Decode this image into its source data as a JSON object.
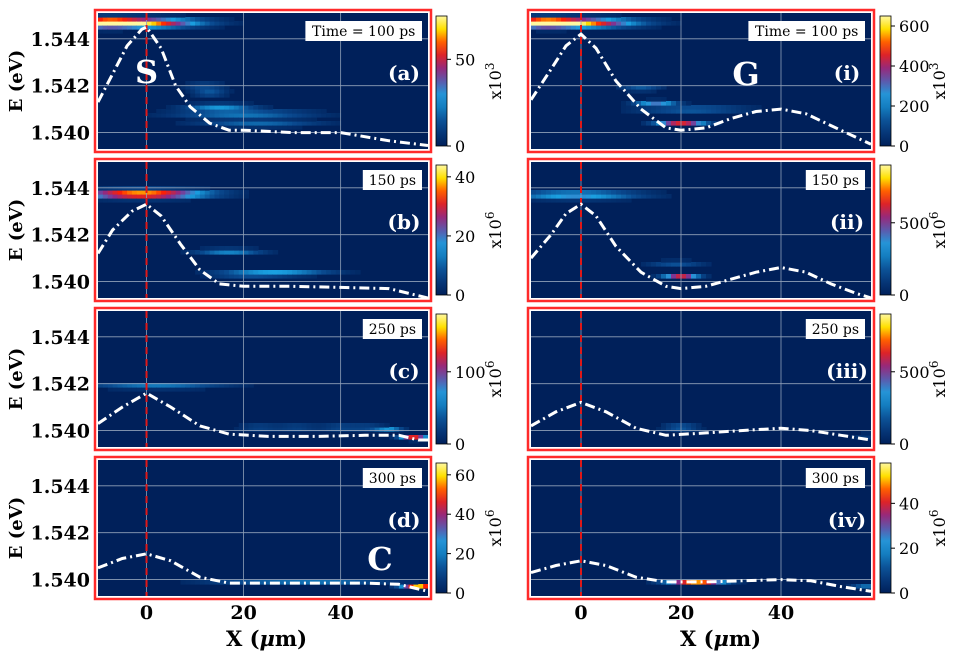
{
  "colors": {
    "background": "#00205a",
    "frame": "#ff2a2a",
    "grid": "#8fa0b8",
    "ridge": "#ffffff",
    "marker": "#e01818",
    "colormap": [
      "#00205a",
      "#0a4a90",
      "#1aa0e0",
      "#8a2a8a",
      "#ff2000",
      "#ffe000",
      "#fff8a0"
    ]
  },
  "chart_data": [
    {
      "type": "heatmap",
      "panel": "(a)",
      "timeLabel": "Time = 100 ps",
      "bigLetter": "S",
      "xlim": [
        -10,
        58
      ],
      "ylim": [
        1.5393,
        1.5451
      ],
      "xticks": [
        0,
        20,
        40
      ],
      "yticks": [
        1.54,
        1.542,
        1.544
      ],
      "ytickLabels": [
        "1.540",
        "1.542",
        "1.544"
      ],
      "colorbar": {
        "ticks": [
          0,
          50
        ],
        "max": 75,
        "exponent": "x10",
        "power": "3"
      },
      "ridge": [
        [
          -10,
          1.5413
        ],
        [
          -7,
          1.5425
        ],
        [
          -4,
          1.5437
        ],
        [
          -1,
          1.5444
        ],
        [
          0,
          1.5445
        ],
        [
          3,
          1.5436
        ],
        [
          6,
          1.542
        ],
        [
          9,
          1.5411
        ],
        [
          13,
          1.5404
        ],
        [
          17,
          1.5401
        ],
        [
          20,
          1.5401
        ],
        [
          30,
          1.54
        ],
        [
          40,
          1.54
        ],
        [
          50,
          1.53965
        ],
        [
          58,
          1.53945
        ]
      ],
      "blobs": [
        [
          -3,
          1.5447,
          9,
          0.00014,
          1.0
        ],
        [
          -9,
          1.5447,
          4,
          0.00014,
          0.5
        ],
        [
          15,
          1.5411,
          5,
          0.0001,
          0.35
        ],
        [
          13,
          1.5417,
          2.5,
          8e-05,
          0.3
        ],
        [
          20,
          1.5408,
          10,
          0.00012,
          0.3
        ],
        [
          23,
          1.5404,
          9,
          0.0001,
          0.25
        ],
        [
          12,
          1.542,
          3,
          0.0001,
          0.2
        ]
      ]
    },
    {
      "type": "heatmap",
      "panel": "(b)",
      "timeLabel": "150 ps",
      "bigLetter": "",
      "xlim": [
        -10,
        58
      ],
      "ylim": [
        1.5393,
        1.5451
      ],
      "xticks": [
        0,
        20,
        40
      ],
      "yticks": [
        1.54,
        1.542,
        1.544
      ],
      "ytickLabels": [
        "1.540",
        "1.542",
        "1.544"
      ],
      "colorbar": {
        "ticks": [
          0,
          20,
          40
        ],
        "max": 44,
        "exponent": "x10",
        "power": "6"
      },
      "ridge": [
        [
          -10,
          1.5412
        ],
        [
          -7,
          1.5422
        ],
        [
          -3,
          1.543
        ],
        [
          0,
          1.5433
        ],
        [
          3,
          1.5428
        ],
        [
          7,
          1.5416
        ],
        [
          11,
          1.5405
        ],
        [
          15,
          1.5399
        ],
        [
          20,
          1.5398
        ],
        [
          30,
          1.5398
        ],
        [
          40,
          1.53975
        ],
        [
          50,
          1.5397
        ],
        [
          56,
          1.5394
        ],
        [
          58,
          1.5393
        ]
      ],
      "blobs": [
        [
          -1,
          1.54375,
          9,
          0.00012,
          1.0
        ],
        [
          17,
          1.5413,
          5,
          8e-05,
          0.35
        ],
        [
          27,
          1.5404,
          8,
          8e-05,
          0.35
        ],
        [
          21,
          1.5403,
          6,
          6e-05,
          0.25
        ]
      ]
    },
    {
      "type": "heatmap",
      "panel": "(c)",
      "timeLabel": "250 ps",
      "bigLetter": "",
      "xlim": [
        -10,
        58
      ],
      "ylim": [
        1.5393,
        1.5451
      ],
      "xticks": [
        0,
        20,
        40
      ],
      "yticks": [
        1.54,
        1.542,
        1.544
      ],
      "ytickLabels": [
        "1.540",
        "1.542",
        "1.544"
      ],
      "colorbar": {
        "ticks": [
          0,
          100
        ],
        "max": 180,
        "exponent": "x10",
        "power": "6"
      },
      "ridge": [
        [
          -10,
          1.5403
        ],
        [
          -5,
          1.541
        ],
        [
          0,
          1.5416
        ],
        [
          5,
          1.541
        ],
        [
          11,
          1.5402
        ],
        [
          17,
          1.53985
        ],
        [
          25,
          1.53975
        ],
        [
          35,
          1.53975
        ],
        [
          45,
          1.5398
        ],
        [
          52,
          1.5398
        ],
        [
          56,
          1.5396
        ],
        [
          58,
          1.5396
        ]
      ],
      "blobs": [
        [
          2,
          1.5419,
          10,
          7e-05,
          0.35
        ],
        [
          23,
          1.54015,
          3,
          5e-05,
          0.5
        ],
        [
          31,
          1.54015,
          3,
          5e-05,
          0.5
        ],
        [
          40,
          1.54015,
          3,
          5e-05,
          0.55
        ],
        [
          46,
          1.54015,
          2.5,
          5e-05,
          0.45
        ],
        [
          50,
          1.5401,
          2,
          5e-05,
          0.4
        ],
        [
          55,
          1.5397,
          2,
          6e-05,
          0.8
        ]
      ]
    },
    {
      "type": "heatmap",
      "panel": "(d)",
      "timeLabel": "300 ps",
      "bigLetter": "C",
      "xlim": [
        -10,
        58
      ],
      "ylim": [
        1.5393,
        1.5451
      ],
      "xticks": [
        0,
        20,
        40
      ],
      "yticks": [
        1.54,
        1.542,
        1.544
      ],
      "ytickLabels": [
        "1.540",
        "1.542",
        "1.544"
      ],
      "colorbar": {
        "ticks": [
          0,
          20,
          40,
          60
        ],
        "max": 66,
        "exponent": "x10",
        "power": "6"
      },
      "ridge": [
        [
          -10,
          1.5405
        ],
        [
          -5,
          1.5409
        ],
        [
          0,
          1.5411
        ],
        [
          5,
          1.5408
        ],
        [
          11,
          1.5401
        ],
        [
          17,
          1.53985
        ],
        [
          30,
          1.53985
        ],
        [
          45,
          1.53985
        ],
        [
          52,
          1.5398
        ],
        [
          56,
          1.5396
        ],
        [
          58,
          1.5395
        ]
      ],
      "blobs": [
        [
          56,
          1.53975,
          2.5,
          5e-05,
          1.0
        ],
        [
          25,
          1.5399,
          10,
          5e-05,
          0.2
        ],
        [
          40,
          1.5399,
          8,
          5e-05,
          0.18
        ]
      ]
    },
    {
      "type": "heatmap",
      "panel": "(i)",
      "timeLabel": "Time = 100 ps",
      "bigLetter": "G",
      "xlim": [
        -10,
        58
      ],
      "ylim": [
        1.5393,
        1.5451
      ],
      "xticks": [
        0,
        20,
        40
      ],
      "yticks": [
        1.54,
        1.542,
        1.544
      ],
      "ytickLabels": [
        "1.540",
        "1.542",
        "1.544"
      ],
      "colorbar": {
        "ticks": [
          0,
          200,
          400,
          600
        ],
        "max": 650,
        "exponent": "x10",
        "power": "3"
      },
      "ridge": [
        [
          -10,
          1.5414
        ],
        [
          -6,
          1.5427
        ],
        [
          -3,
          1.5437
        ],
        [
          0,
          1.5442
        ],
        [
          3,
          1.5436
        ],
        [
          7,
          1.5422
        ],
        [
          12,
          1.541
        ],
        [
          17,
          1.5402
        ],
        [
          20,
          1.5401
        ],
        [
          25,
          1.5402
        ],
        [
          30,
          1.5406
        ],
        [
          35,
          1.5409
        ],
        [
          40,
          1.541
        ],
        [
          45,
          1.5408
        ],
        [
          50,
          1.5403
        ],
        [
          55,
          1.5398
        ],
        [
          58,
          1.5395
        ]
      ],
      "blobs": [
        [
          -3,
          1.5447,
          9,
          0.00014,
          1.0
        ],
        [
          -8,
          1.5447,
          4,
          0.00014,
          0.5
        ],
        [
          20,
          1.5404,
          3.5,
          6e-05,
          0.7
        ],
        [
          15,
          1.5413,
          3,
          6e-05,
          0.55
        ],
        [
          22,
          1.541,
          8,
          9e-05,
          0.3
        ],
        [
          12,
          1.5419,
          3,
          8e-05,
          0.25
        ]
      ]
    },
    {
      "type": "heatmap",
      "panel": "(ii)",
      "timeLabel": "150 ps",
      "bigLetter": "",
      "xlim": [
        -10,
        58
      ],
      "ylim": [
        1.5393,
        1.5451
      ],
      "xticks": [
        0,
        20,
        40
      ],
      "yticks": [
        1.54,
        1.542,
        1.544
      ],
      "ytickLabels": [
        "1.540",
        "1.542",
        "1.544"
      ],
      "colorbar": {
        "ticks": [
          0,
          500
        ],
        "max": 900,
        "exponent": "x10",
        "power": "6"
      },
      "ridge": [
        [
          -10,
          1.541
        ],
        [
          -6,
          1.542
        ],
        [
          -3,
          1.5429
        ],
        [
          0,
          1.5433
        ],
        [
          3,
          1.5428
        ],
        [
          7,
          1.5415
        ],
        [
          12,
          1.5404
        ],
        [
          17,
          1.5398
        ],
        [
          20,
          1.5397
        ],
        [
          25,
          1.5398
        ],
        [
          30,
          1.5401
        ],
        [
          35,
          1.5404
        ],
        [
          40,
          1.5406
        ],
        [
          45,
          1.5404
        ],
        [
          50,
          1.5399
        ],
        [
          55,
          1.5395
        ],
        [
          58,
          1.5393
        ]
      ],
      "blobs": [
        [
          -1,
          1.5437,
          9,
          0.00012,
          0.45
        ],
        [
          20,
          1.5402,
          2.5,
          5e-05,
          0.9
        ],
        [
          19,
          1.5408,
          4,
          7e-05,
          0.25
        ]
      ]
    },
    {
      "type": "heatmap",
      "panel": "(iii)",
      "timeLabel": "250 ps",
      "bigLetter": "",
      "xlim": [
        -10,
        58
      ],
      "ylim": [
        1.5393,
        1.5451
      ],
      "xticks": [
        0,
        20,
        40
      ],
      "yticks": [
        1.54,
        1.542,
        1.544
      ],
      "ytickLabels": [
        "1.540",
        "1.542",
        "1.544"
      ],
      "colorbar": {
        "ticks": [
          0,
          500
        ],
        "max": 900,
        "exponent": "x10",
        "power": "6"
      },
      "ridge": [
        [
          -10,
          1.5402
        ],
        [
          -5,
          1.5408
        ],
        [
          0,
          1.5412
        ],
        [
          5,
          1.5408
        ],
        [
          11,
          1.5401
        ],
        [
          17,
          1.5398
        ],
        [
          25,
          1.5399
        ],
        [
          32,
          1.54
        ],
        [
          40,
          1.5401
        ],
        [
          46,
          1.54
        ],
        [
          52,
          1.5398
        ],
        [
          58,
          1.5396
        ]
      ],
      "blobs": [
        [
          20,
          1.54015,
          2.5,
          5e-05,
          0.8
        ],
        [
          57,
          1.5398,
          2,
          5e-05,
          0.3
        ]
      ]
    },
    {
      "type": "heatmap",
      "panel": "(iv)",
      "timeLabel": "300 ps",
      "bigLetter": "",
      "xlim": [
        -10,
        58
      ],
      "ylim": [
        1.5393,
        1.5451
      ],
      "xticks": [
        0,
        20,
        40
      ],
      "yticks": [
        1.54,
        1.542,
        1.544
      ],
      "ytickLabels": [
        "1.540",
        "1.542",
        "1.544"
      ],
      "colorbar": {
        "ticks": [
          0,
          20,
          40
        ],
        "max": 58,
        "exponent": "x10",
        "power": "6"
      },
      "ridge": [
        [
          -10,
          1.5403
        ],
        [
          -5,
          1.5406
        ],
        [
          0,
          1.5408
        ],
        [
          5,
          1.5406
        ],
        [
          11,
          1.5401
        ],
        [
          17,
          1.5399
        ],
        [
          25,
          1.5399
        ],
        [
          32,
          1.53995
        ],
        [
          40,
          1.54
        ],
        [
          46,
          1.53995
        ],
        [
          52,
          1.5397
        ],
        [
          58,
          1.5395
        ]
      ],
      "blobs": [
        [
          23,
          1.5399,
          4,
          5e-05,
          0.85
        ],
        [
          57,
          1.5397,
          2,
          5e-05,
          0.3
        ]
      ]
    }
  ],
  "axes": {
    "ylabel": "E (eV)",
    "xlabel_main": "X (",
    "xlabel_mu": "μ",
    "xlabel_unit": "m)"
  }
}
